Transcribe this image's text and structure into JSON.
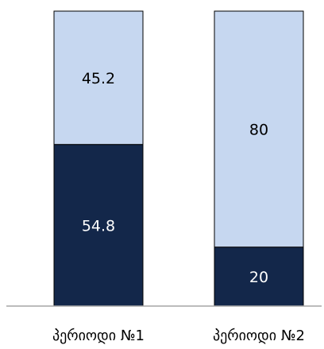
{
  "chart_data": {
    "type": "bar",
    "stacked": true,
    "percent_stacked": true,
    "categories": [
      "პერიოდი №1",
      "პერიოდი №2"
    ],
    "series": [
      {
        "values": [
          54.8,
          20
        ],
        "color": "#13274a",
        "label_color": "#ffffff"
      },
      {
        "values": [
          45.2,
          80
        ],
        "color": "#c6d7f0",
        "label_color": "#000000"
      }
    ],
    "ylim": [
      0,
      100
    ],
    "grid": false,
    "legend": "none"
  }
}
